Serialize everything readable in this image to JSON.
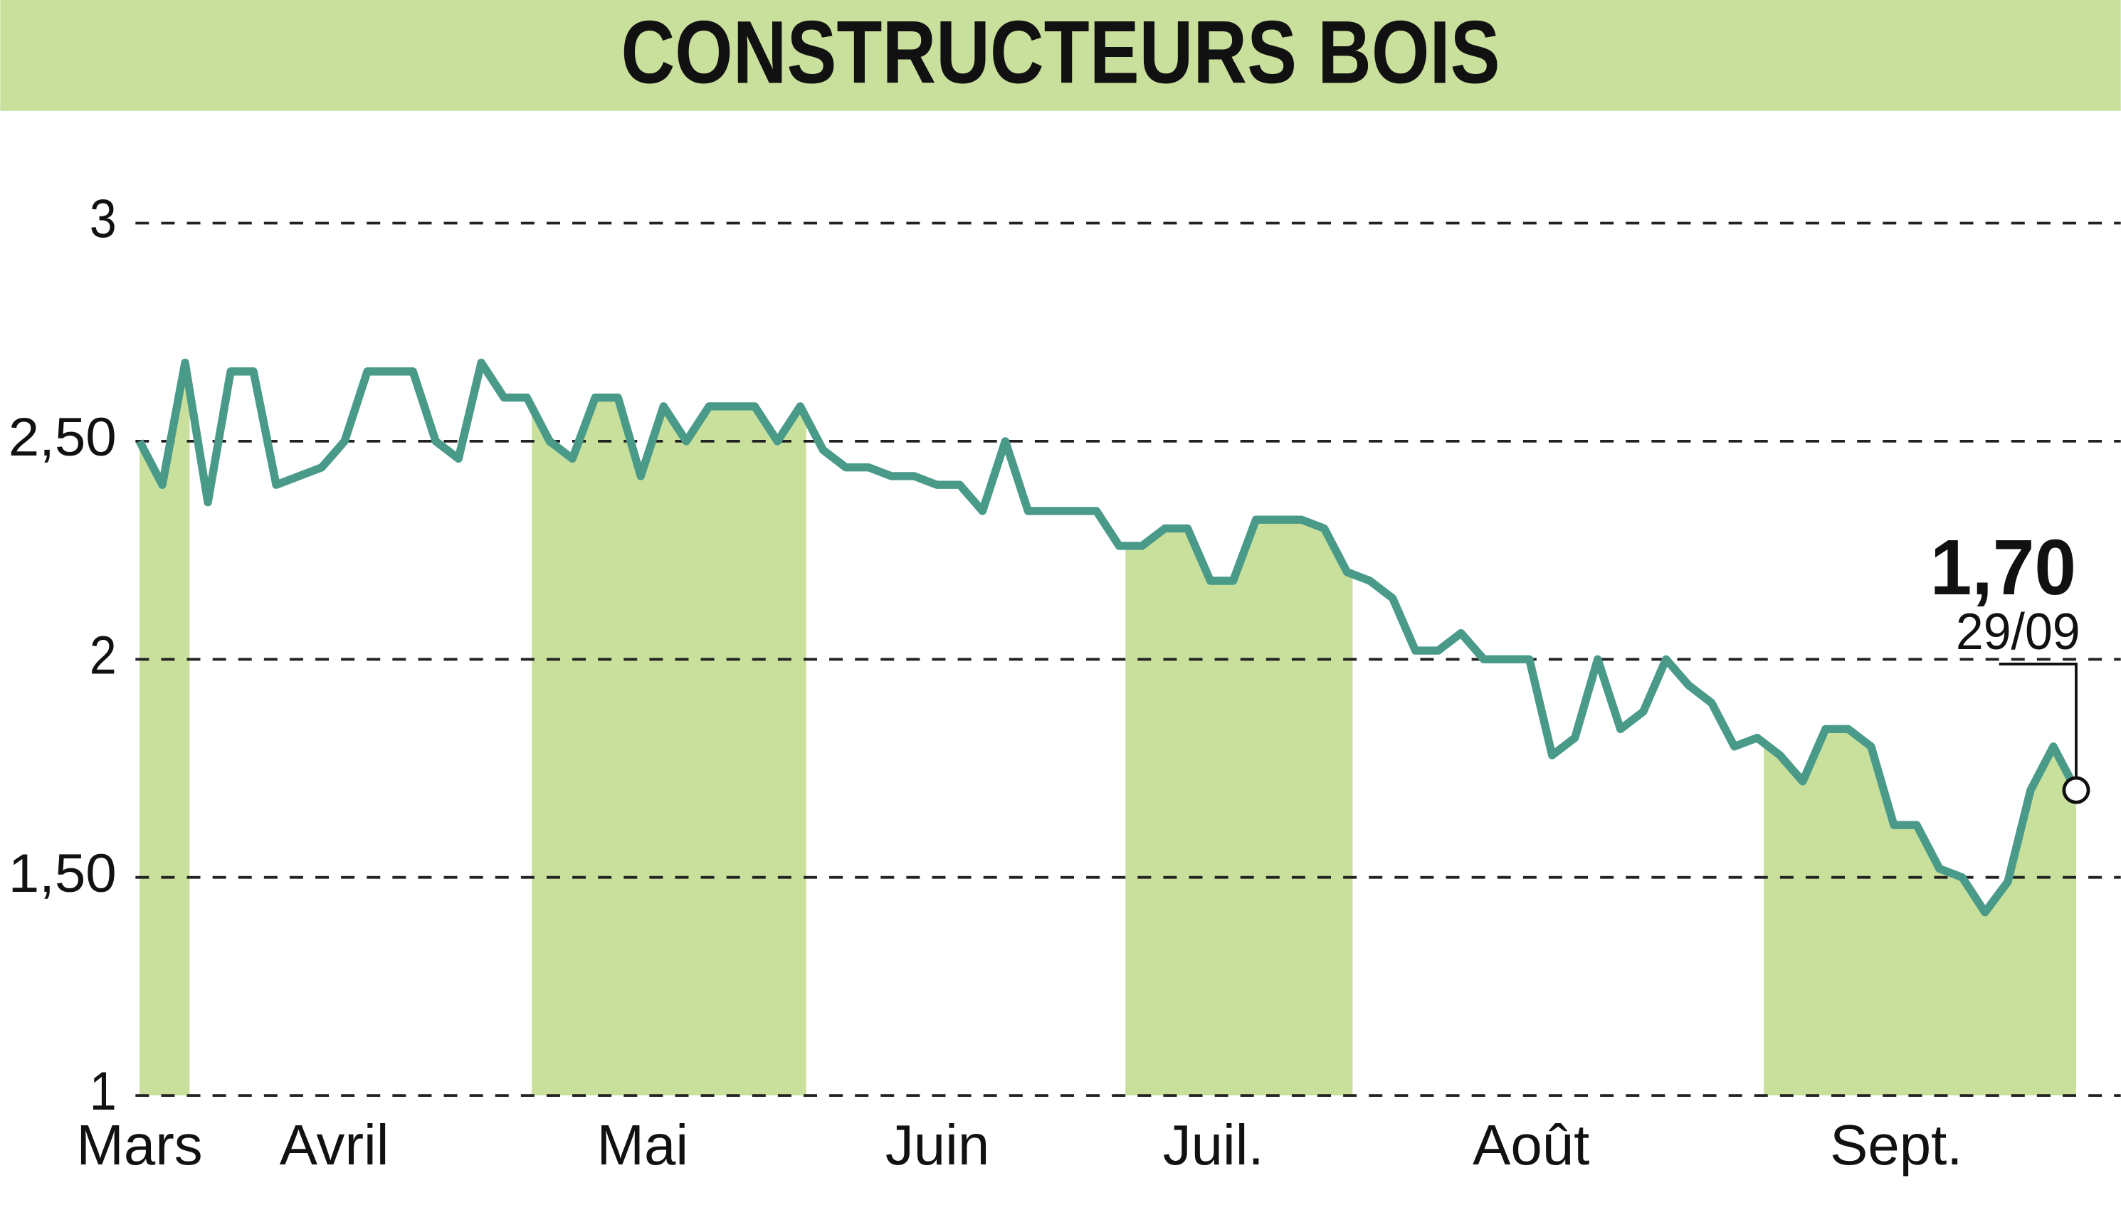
{
  "chart_data": {
    "type": "line",
    "title": "CONSTRUCTEURS BOIS",
    "months": [
      "Mars",
      "Avril",
      "Mai",
      "Juin",
      "Juil.",
      "Août",
      "Sept."
    ],
    "values": [
      2.5,
      2.4,
      2.68,
      2.36,
      2.66,
      2.66,
      2.4,
      2.42,
      2.44,
      2.5,
      2.66,
      2.66,
      2.66,
      2.5,
      2.46,
      2.68,
      2.6,
      2.6,
      2.5,
      2.46,
      2.6,
      2.6,
      2.42,
      2.58,
      2.5,
      2.58,
      2.58,
      2.58,
      2.5,
      2.58,
      2.48,
      2.44,
      2.44,
      2.42,
      2.42,
      2.4,
      2.4,
      2.34,
      2.5,
      2.34,
      2.34,
      2.34,
      2.34,
      2.26,
      2.26,
      2.3,
      2.3,
      2.18,
      2.18,
      2.32,
      2.32,
      2.32,
      2.3,
      2.2,
      2.18,
      2.14,
      2.02,
      2.02,
      2.06,
      2.0,
      2.0,
      2.0,
      1.78,
      1.82,
      2.0,
      1.84,
      1.88,
      2.0,
      1.94,
      1.9,
      1.8,
      1.82,
      1.78,
      1.72,
      1.84,
      1.84,
      1.8,
      1.62,
      1.62,
      1.52,
      1.5,
      1.42,
      1.49,
      1.7,
      1.8,
      1.7
    ],
    "color": "#4a9a8a",
    "ylim": [
      1,
      3
    ],
    "yticks": [
      1,
      {
        "value": 1.5,
        "label": "1,50"
      },
      2,
      {
        "value": 2.5,
        "label": "2,50"
      },
      3
    ],
    "grid": true,
    "last_value_label": "1,70",
    "last_date": "29/09"
  }
}
